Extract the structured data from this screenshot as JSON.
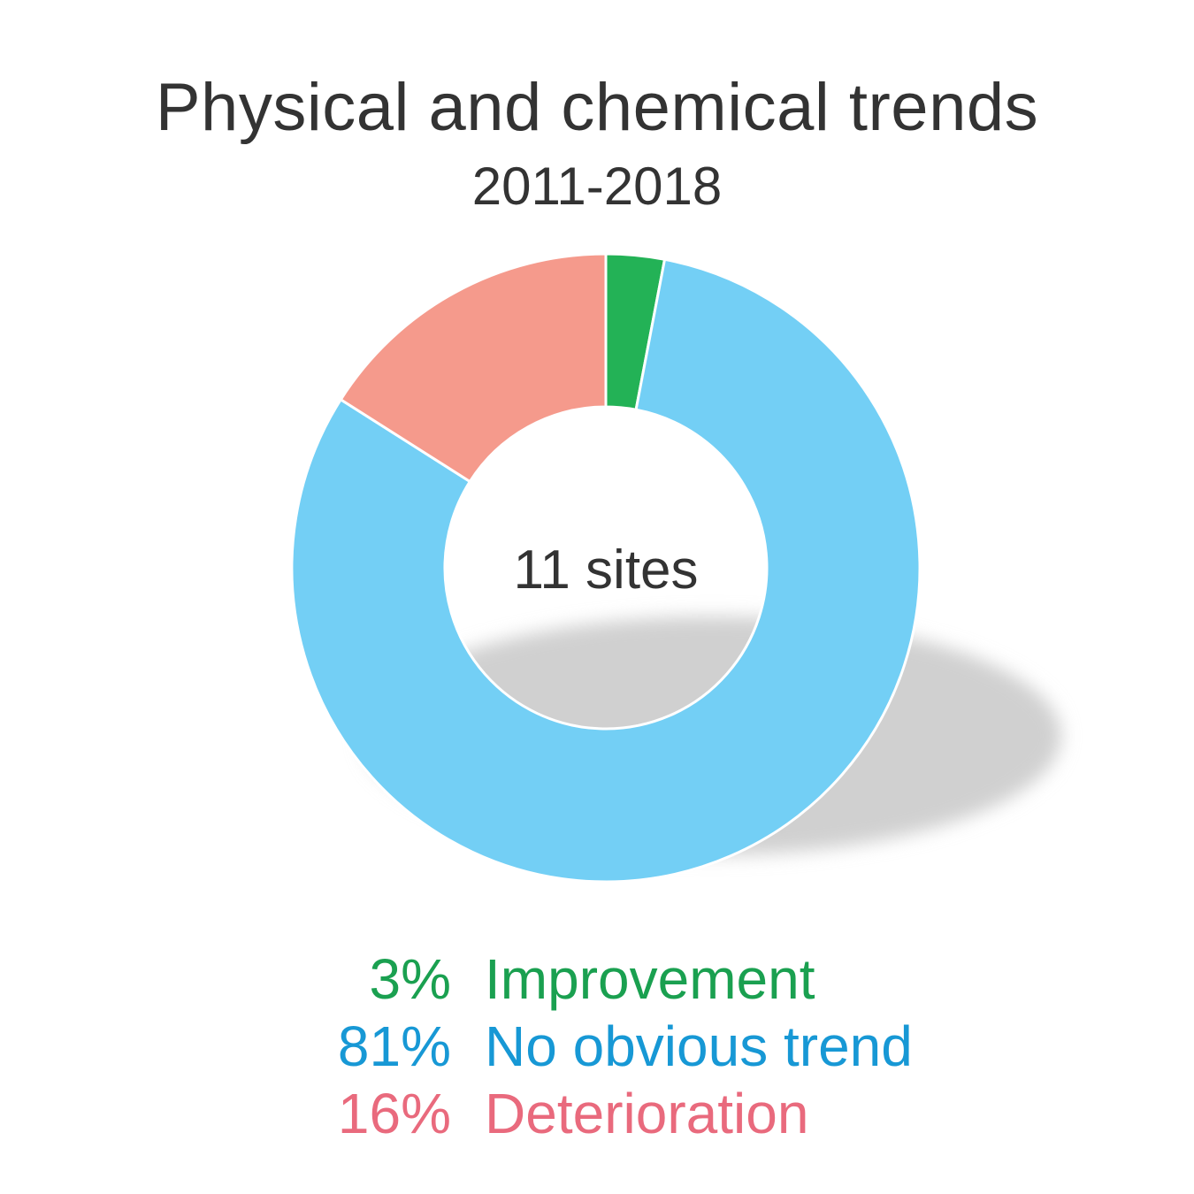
{
  "chart_data": {
    "type": "pie",
    "title": "Physical and chemical trends",
    "subtitle": "2011-2018",
    "center_label": "11 sites",
    "slices": [
      {
        "label": "Improvement",
        "pct_label": "3%",
        "value": 3,
        "color": "#23b256",
        "text_color": "#1aa050"
      },
      {
        "label": "No obvious trend",
        "pct_label": "81%",
        "value": 81,
        "color": "#73cff5",
        "text_color": "#1798d5"
      },
      {
        "label": "Deterioration",
        "pct_label": "16%",
        "value": 16,
        "color": "#f59a8c",
        "text_color": "#e96a7d"
      }
    ]
  }
}
